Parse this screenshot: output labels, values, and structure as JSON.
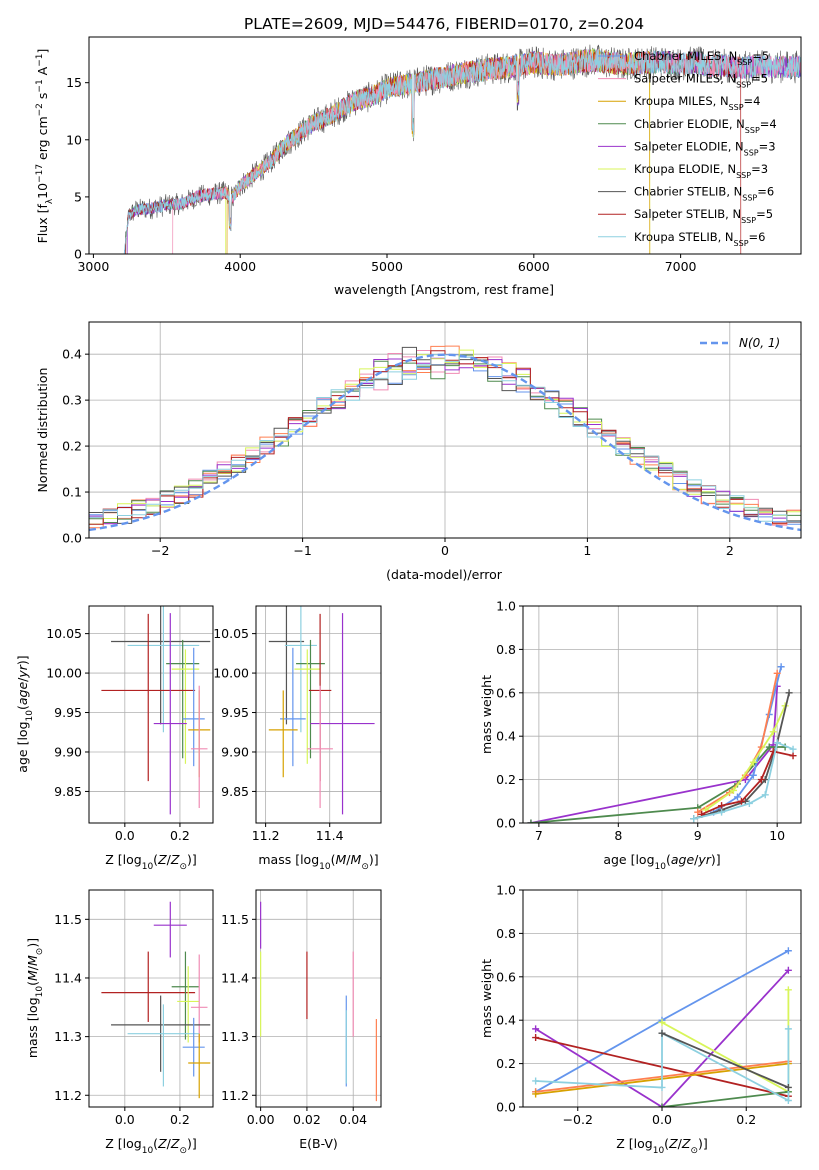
{
  "figure_title": "PLATE=2609, MJD=54476, FIBERID=0170, z=0.204",
  "colors": {
    "chabrier_miles": "#6495ed",
    "salpeter_miles": "#ff7f50",
    "kroupa_miles": "#d7a100",
    "chabrier_elodie": "#4e8a4e",
    "salpeter_elodie": "#9932cc",
    "kroupa_elodie": "#d8f55a",
    "chabrier_stelib": "#555555",
    "salpeter_stelib": "#b22222",
    "kroupa_stelib": "#8dd0e0",
    "gauss": "#6495ed",
    "hist_pink": "#f08cb4",
    "grid": "#b0b0b0"
  },
  "chart_data": [
    {
      "id": "spectrum",
      "type": "line",
      "title": "PLATE=2609, MJD=54476, FIBERID=0170, z=0.204",
      "xlabel": "wavelength [Angstrom, rest frame]",
      "ylabel": "Flux [f$_\\lambda$10$^{-17}$ erg cm$^{-2}$ s$^{-1}$ A$^{-1}$]",
      "ylabel_parts": [
        "Flux [f",
        "λ",
        "10",
        "−17",
        " erg cm",
        "−2",
        " s",
        "−1",
        " A",
        "−1",
        "]"
      ],
      "xlim": [
        2970,
        7820
      ],
      "ylim": [
        0,
        19
      ],
      "xticks": [
        3000,
        4000,
        5000,
        6000,
        7000
      ],
      "xtick_labels": [
        "3000",
        "4000",
        "5000",
        "6000",
        "7000"
      ],
      "yticks": [
        0,
        5,
        10,
        15
      ],
      "ytick_labels": [
        "0",
        "5",
        "10",
        "15"
      ],
      "grid": false,
      "legend_position": "right",
      "legend": [
        {
          "name": "Chabrier MILES, N",
          "sub": "SSP",
          "tail": "=5",
          "color_key": "chabrier_miles"
        },
        {
          "name": "Salpeter MILES, N",
          "sub": "SSP",
          "tail": "=5",
          "color_key": "hist_pink"
        },
        {
          "name": "Kroupa MILES, N",
          "sub": "SSP",
          "tail": "=4",
          "color_key": "kroupa_miles"
        },
        {
          "name": "Chabrier ELODIE, N",
          "sub": "SSP",
          "tail": "=4",
          "color_key": "chabrier_elodie"
        },
        {
          "name": "Salpeter ELODIE, N",
          "sub": "SSP",
          "tail": "=3",
          "color_key": "salpeter_elodie"
        },
        {
          "name": "Kroupa ELODIE, N",
          "sub": "SSP",
          "tail": "=3",
          "color_key": "kroupa_elodie"
        },
        {
          "name": "Chabrier STELIB, N",
          "sub": "SSP",
          "tail": "=6",
          "color_key": "chabrier_stelib"
        },
        {
          "name": "Salpeter STELIB, N",
          "sub": "SSP",
          "tail": "=5",
          "color_key": "salpeter_stelib"
        },
        {
          "name": "Kroupa STELIB, N",
          "sub": "SSP",
          "tail": "=6",
          "color_key": "kroupa_stelib"
        }
      ],
      "continuum": {
        "x": [
          3210,
          3240,
          3300,
          3400,
          3500,
          3600,
          3700,
          3800,
          3900,
          3950,
          4000,
          4100,
          4200,
          4300,
          4400,
          4500,
          4600,
          4700,
          4800,
          4900,
          5000,
          5100,
          5200,
          5300,
          5400,
          5500,
          5600,
          5700,
          5800,
          5900,
          6000,
          6100,
          6200,
          6300,
          6400,
          6500,
          6600,
          6700,
          6800,
          6900,
          7000,
          7100,
          7200,
          7300,
          7400,
          7500
        ],
        "y": [
          0,
          3.4,
          3.9,
          4.0,
          4.3,
          4.4,
          5.0,
          5.2,
          5.4,
          4.9,
          6.0,
          7.0,
          8.0,
          9.5,
          10.5,
          11.5,
          12.0,
          12.8,
          13.5,
          13.8,
          14.5,
          14.8,
          15.0,
          15.3,
          15.5,
          15.8,
          16.0,
          16.2,
          16.3,
          16.5,
          16.8,
          16.6,
          16.6,
          16.8,
          17.0,
          16.8,
          16.6,
          16.7,
          16.8,
          16.8,
          16.6,
          16.8,
          16.5,
          16.5,
          16.3,
          16.4
        ]
      },
      "series_start_wavelength": [
        3210,
        3540,
        3910,
        3220,
        3230,
        3900,
        3210,
        3220,
        3210
      ],
      "series_end_wavelength": [
        7820,
        7820,
        6790,
        7820,
        7820,
        6790,
        7820,
        7410,
        7820
      ]
    },
    {
      "id": "residuals",
      "type": "histogram",
      "xlabel": "(data-model)/error",
      "ylabel": "Normed distribution",
      "xlim": [
        -2.5,
        2.5
      ],
      "ylim": [
        0,
        0.47
      ],
      "xticks": [
        -2,
        -1,
        0,
        1,
        2
      ],
      "xtick_labels": [
        "−2",
        "−1",
        "0",
        "1",
        "2"
      ],
      "yticks": [
        0,
        0.1,
        0.2,
        0.3,
        0.4
      ],
      "ytick_labels": [
        "0.0",
        "0.1",
        "0.2",
        "0.3",
        "0.4"
      ],
      "grid": true,
      "legend_position": "top-right",
      "legend_label": "N(0, 1)",
      "gauss_mean": 0,
      "gauss_sigma": 1
    },
    {
      "id": "age_vs_Z",
      "type": "errorbar",
      "xlabel": "Z [log10(Z/Z⊙)]",
      "ylabel": "age  [log10(age/yr)]",
      "xlim": [
        -0.13,
        0.32
      ],
      "ylim": [
        9.81,
        10.085
      ],
      "xticks": [
        0,
        0.2
      ],
      "xtick_labels": [
        "0.0",
        "0.2"
      ],
      "yticks": [
        9.85,
        9.9,
        9.95,
        10.0,
        10.05
      ],
      "ytick_labels": [
        "9.85",
        "9.90",
        "9.95",
        "10.00",
        "10.05"
      ],
      "grid": true,
      "points": [
        {
          "x": 0.13,
          "y": 10.04,
          "xerr": 0.18,
          "yerr_lo": 0.105,
          "yerr_hi": 0.045,
          "color_key": "chabrier_stelib"
        },
        {
          "x": 0.14,
          "y": 10.035,
          "xerr": 0.13,
          "yerr_lo": 0.11,
          "yerr_hi": 0.05,
          "color_key": "kroupa_stelib"
        },
        {
          "x": 0.21,
          "y": 10.012,
          "xerr": 0.06,
          "yerr_lo": 0.12,
          "yerr_hi": 0.03,
          "color_key": "chabrier_elodie"
        },
        {
          "x": 0.22,
          "y": 10.005,
          "xerr": 0.05,
          "yerr_lo": 0.12,
          "yerr_hi": 0.025,
          "color_key": "kroupa_elodie"
        },
        {
          "x": 0.085,
          "y": 9.978,
          "xerr": 0.17,
          "yerr_lo": 0.115,
          "yerr_hi": 0.097,
          "color_key": "salpeter_stelib"
        },
        {
          "x": 0.25,
          "y": 9.942,
          "xerr": 0.04,
          "yerr_lo": 0.06,
          "yerr_hi": 0.09,
          "color_key": "chabrier_miles"
        },
        {
          "x": 0.165,
          "y": 9.936,
          "xerr": 0.06,
          "yerr_lo": 0.115,
          "yerr_hi": 0.14,
          "color_key": "salpeter_elodie"
        },
        {
          "x": 0.27,
          "y": 9.928,
          "xerr": 0.04,
          "yerr_lo": 0.06,
          "yerr_hi": 0.05,
          "color_key": "kroupa_miles"
        },
        {
          "x": 0.27,
          "y": 9.904,
          "xerr": 0.03,
          "yerr_lo": 0.075,
          "yerr_hi": 0.08,
          "color_key": "hist_pink"
        }
      ]
    },
    {
      "id": "age_vs_mass",
      "type": "errorbar",
      "xlabel": "mass [log10(M/M⊙)]",
      "ylabel": "",
      "xlim": [
        11.17,
        11.56
      ],
      "ylim": [
        9.81,
        10.085
      ],
      "xticks": [
        11.2,
        11.4
      ],
      "xtick_labels": [
        "11.2",
        "11.4"
      ],
      "yticks": [
        9.85,
        9.9,
        9.95,
        10.0,
        10.05
      ],
      "ytick_labels": [
        "9.85",
        "9.90",
        "9.95",
        "10.00",
        "10.05"
      ],
      "grid": true,
      "points": [
        {
          "x": 11.265,
          "y": 10.04,
          "xerr": 0.055,
          "yerr_lo": 0.105,
          "yerr_hi": 0.045,
          "color_key": "chabrier_stelib"
        },
        {
          "x": 11.31,
          "y": 10.035,
          "xerr": 0.05,
          "yerr_lo": 0.11,
          "yerr_hi": 0.05,
          "color_key": "kroupa_stelib"
        },
        {
          "x": 11.34,
          "y": 10.012,
          "xerr": 0.045,
          "yerr_lo": 0.12,
          "yerr_hi": 0.03,
          "color_key": "chabrier_elodie"
        },
        {
          "x": 11.33,
          "y": 10.005,
          "xerr": 0.04,
          "yerr_lo": 0.12,
          "yerr_hi": 0.025,
          "color_key": "kroupa_elodie"
        },
        {
          "x": 11.37,
          "y": 9.978,
          "xerr": 0.035,
          "yerr_lo": 0.115,
          "yerr_hi": 0.097,
          "color_key": "salpeter_stelib"
        },
        {
          "x": 11.285,
          "y": 9.942,
          "xerr": 0.04,
          "yerr_lo": 0.06,
          "yerr_hi": 0.09,
          "color_key": "chabrier_miles"
        },
        {
          "x": 11.44,
          "y": 9.936,
          "xerr": 0.1,
          "yerr_lo": 0.115,
          "yerr_hi": 0.14,
          "color_key": "salpeter_elodie"
        },
        {
          "x": 11.255,
          "y": 9.928,
          "xerr": 0.045,
          "yerr_lo": 0.06,
          "yerr_hi": 0.05,
          "color_key": "kroupa_miles"
        },
        {
          "x": 11.37,
          "y": 9.904,
          "xerr": 0.04,
          "yerr_lo": 0.075,
          "yerr_hi": 0.08,
          "color_key": "hist_pink"
        }
      ]
    },
    {
      "id": "mass_weight_vs_age",
      "type": "line",
      "xlabel": "age  [log10(age/yr)]",
      "ylabel": "mass weight",
      "xlim": [
        6.8,
        10.3
      ],
      "ylim": [
        0,
        1
      ],
      "xticks": [
        7,
        8,
        9,
        10
      ],
      "xtick_labels": [
        "7",
        "8",
        "9",
        "10"
      ],
      "yticks": [
        0,
        0.2,
        0.4,
        0.6,
        0.8,
        1.0
      ],
      "ytick_labels": [
        "0.0",
        "0.2",
        "0.4",
        "0.6",
        "0.8",
        "1.0"
      ],
      "grid": true,
      "series": [
        {
          "color_key": "salpeter_elodie",
          "x": [
            6.9,
            9.6,
            9.95,
            10.0
          ],
          "y": [
            0.0,
            0.2,
            0.36,
            0.63
          ]
        },
        {
          "color_key": "chabrier_elodie",
          "x": [
            6.9,
            9.0,
            9.5,
            9.9,
            10.1
          ],
          "y": [
            0.0,
            0.07,
            0.18,
            0.35,
            0.35
          ]
        },
        {
          "color_key": "chabrier_miles",
          "x": [
            9.2,
            9.5,
            9.7,
            9.9,
            10.05
          ],
          "y": [
            0.05,
            0.12,
            0.22,
            0.5,
            0.72
          ]
        },
        {
          "color_key": "salpeter_miles",
          "x": [
            9.0,
            9.4,
            9.6,
            9.8,
            10.0
          ],
          "y": [
            0.05,
            0.14,
            0.22,
            0.35,
            0.69
          ]
        },
        {
          "color_key": "kroupa_elodie",
          "x": [
            9.1,
            9.45,
            9.7,
            9.95,
            10.1
          ],
          "y": [
            0.06,
            0.15,
            0.28,
            0.42,
            0.54
          ]
        },
        {
          "color_key": "chabrier_stelib",
          "x": [
            8.95,
            9.3,
            9.6,
            9.85,
            10.0,
            10.15
          ],
          "y": [
            0.02,
            0.06,
            0.1,
            0.2,
            0.37,
            0.6
          ]
        },
        {
          "color_key": "salpeter_stelib",
          "x": [
            9.05,
            9.3,
            9.55,
            9.8,
            9.95,
            10.2
          ],
          "y": [
            0.04,
            0.08,
            0.1,
            0.2,
            0.33,
            0.31
          ]
        },
        {
          "color_key": "kroupa_stelib",
          "x": [
            8.95,
            9.3,
            9.65,
            9.85,
            10.0,
            10.2
          ],
          "y": [
            0.02,
            0.05,
            0.09,
            0.13,
            0.37,
            0.34
          ]
        }
      ]
    },
    {
      "id": "mass_vs_Z",
      "type": "errorbar",
      "xlabel": "Z [log10(Z/Z⊙)]",
      "ylabel": "mass [log10(M/M⊙)]",
      "xlim": [
        -0.13,
        0.32
      ],
      "ylim": [
        11.18,
        11.55
      ],
      "xticks": [
        0,
        0.2
      ],
      "xtick_labels": [
        "0.0",
        "0.2"
      ],
      "yticks": [
        11.2,
        11.3,
        11.4,
        11.5
      ],
      "ytick_labels": [
        "11.2",
        "11.3",
        "11.4",
        "11.5"
      ],
      "grid": true,
      "points": [
        {
          "x": 0.165,
          "y": 11.49,
          "xerr": 0.06,
          "yerr_lo": 0.055,
          "yerr_hi": 0.04,
          "color_key": "salpeter_elodie"
        },
        {
          "x": 0.085,
          "y": 11.375,
          "xerr": 0.17,
          "yerr_lo": 0.05,
          "yerr_hi": 0.07,
          "color_key": "salpeter_stelib"
        },
        {
          "x": 0.22,
          "y": 11.385,
          "xerr": 0.05,
          "yerr_lo": 0.09,
          "yerr_hi": 0.06,
          "color_key": "chabrier_elodie"
        },
        {
          "x": 0.23,
          "y": 11.36,
          "xerr": 0.04,
          "yerr_lo": 0.07,
          "yerr_hi": 0.06,
          "color_key": "kroupa_elodie"
        },
        {
          "x": 0.27,
          "y": 11.35,
          "xerr": 0.03,
          "yerr_lo": 0.06,
          "yerr_hi": 0.09,
          "color_key": "hist_pink"
        },
        {
          "x": 0.13,
          "y": 11.32,
          "xerr": 0.18,
          "yerr_lo": 0.08,
          "yerr_hi": 0.05,
          "color_key": "chabrier_stelib"
        },
        {
          "x": 0.14,
          "y": 11.305,
          "xerr": 0.13,
          "yerr_lo": 0.09,
          "yerr_hi": 0.05,
          "color_key": "kroupa_stelib"
        },
        {
          "x": 0.25,
          "y": 11.282,
          "xerr": 0.04,
          "yerr_lo": 0.05,
          "yerr_hi": 0.05,
          "color_key": "chabrier_miles"
        },
        {
          "x": 0.27,
          "y": 11.255,
          "xerr": 0.04,
          "yerr_lo": 0.06,
          "yerr_hi": 0.05,
          "color_key": "kroupa_miles"
        }
      ]
    },
    {
      "id": "mass_vs_ebv",
      "type": "errorbar",
      "xlabel": "E(B-V)",
      "ylabel": "",
      "xlim": [
        -0.002,
        0.052
      ],
      "ylim": [
        11.18,
        11.55
      ],
      "xticks": [
        0,
        0.02,
        0.04
      ],
      "xtick_labels": [
        "0.00",
        "0.02",
        "0.04"
      ],
      "yticks": [
        11.2,
        11.3,
        11.4,
        11.5
      ],
      "ytick_labels": [
        "11.2",
        "11.3",
        "11.4",
        "11.5"
      ],
      "grid": true,
      "points": [
        {
          "x": 0.0,
          "y": 11.49,
          "xerr": 0,
          "yerr_lo": 0.04,
          "yerr_hi": 0.04,
          "color_key": "salpeter_elodie"
        },
        {
          "x": 0.0,
          "y": 11.375,
          "xerr": 0,
          "yerr_lo": 0.075,
          "yerr_hi": 0.07,
          "color_key": "kroupa_elodie"
        },
        {
          "x": 0.02,
          "y": 11.385,
          "xerr": 0,
          "yerr_lo": 0.055,
          "yerr_hi": 0.06,
          "color_key": "salpeter_stelib"
        },
        {
          "x": 0.037,
          "y": 11.3,
          "xerr": 0,
          "yerr_lo": 0.085,
          "yerr_hi": 0.07,
          "color_key": "chabrier_miles"
        },
        {
          "x": 0.037,
          "y": 11.3,
          "xerr": 0,
          "yerr_lo": 0.08,
          "yerr_hi": 0.045,
          "color_key": "kroupa_stelib"
        },
        {
          "x": 0.04,
          "y": 11.36,
          "xerr": 0,
          "yerr_lo": 0.06,
          "yerr_hi": 0.085,
          "color_key": "hist_pink"
        },
        {
          "x": 0.05,
          "y": 11.26,
          "xerr": 0,
          "yerr_lo": 0.07,
          "yerr_hi": 0.07,
          "color_key": "salpeter_miles"
        }
      ]
    },
    {
      "id": "mass_weight_vs_Z",
      "type": "line",
      "xlabel": "Z [log10(Z/Z⊙)]",
      "ylabel": "mass weight",
      "xlim": [
        -0.33,
        0.33
      ],
      "ylim": [
        0,
        1
      ],
      "xticks": [
        -0.2,
        0,
        0.2
      ],
      "xtick_labels": [
        "−0.2",
        "0.0",
        "0.2"
      ],
      "yticks": [
        0,
        0.2,
        0.4,
        0.6,
        0.8,
        1.0
      ],
      "ytick_labels": [
        "0.0",
        "0.2",
        "0.4",
        "0.6",
        "0.8",
        "1.0"
      ],
      "grid": true,
      "series": [
        {
          "color_key": "chabrier_miles",
          "x": [
            -0.3,
            0.0,
            0.3
          ],
          "y": [
            0.07,
            0.4,
            0.72
          ]
        },
        {
          "color_key": "salpeter_elodie",
          "x": [
            -0.3,
            0.0,
            0.3
          ],
          "y": [
            0.36,
            0.0,
            0.63
          ]
        },
        {
          "color_key": "kroupa_elodie",
          "x": [
            0.0,
            0.3,
            0.3
          ],
          "y": [
            0.39,
            0.07,
            0.54
          ]
        },
        {
          "color_key": "salpeter_stelib",
          "x": [
            -0.3,
            0.3
          ],
          "y": [
            0.32,
            0.05
          ]
        },
        {
          "color_key": "chabrier_elodie",
          "x": [
            0.0,
            0.3
          ],
          "y": [
            0.0,
            0.07
          ]
        },
        {
          "color_key": "salpeter_miles",
          "x": [
            -0.3,
            0.3
          ],
          "y": [
            0.07,
            0.21
          ]
        },
        {
          "color_key": "kroupa_miles",
          "x": [
            -0.3,
            0.3
          ],
          "y": [
            0.06,
            0.2
          ]
        },
        {
          "color_key": "kroupa_stelib",
          "x": [
            -0.3,
            0.0,
            0.0,
            0.3,
            0.3
          ],
          "y": [
            0.12,
            0.09,
            0.34,
            0.03,
            0.36
          ]
        },
        {
          "color_key": "chabrier_stelib",
          "x": [
            0.0,
            0.3
          ],
          "y": [
            0.34,
            0.09
          ]
        }
      ]
    }
  ]
}
